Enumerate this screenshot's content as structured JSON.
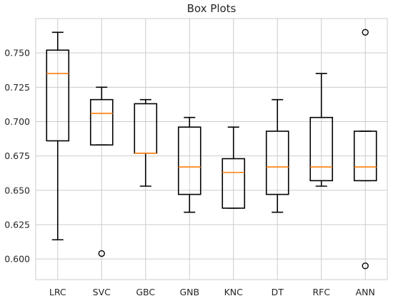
{
  "chart_data": {
    "type": "box",
    "title": "Box Plots",
    "xlabel": "",
    "ylabel": "",
    "ylim": [
      0.585,
      0.775
    ],
    "yticks": [
      0.6,
      0.625,
      0.65,
      0.675,
      0.7,
      0.725,
      0.75
    ],
    "ytick_labels": [
      "0.600",
      "0.625",
      "0.650",
      "0.675",
      "0.700",
      "0.725",
      "0.750"
    ],
    "grid": true,
    "categories": [
      "LRC",
      "SVC",
      "GBC",
      "GNB",
      "KNC",
      "DT",
      "RFC",
      "ANN"
    ],
    "boxes": [
      {
        "label": "LRC",
        "whislo": 0.614,
        "q1": 0.686,
        "med": 0.735,
        "q3": 0.752,
        "whishi": 0.765,
        "fliers": []
      },
      {
        "label": "SVC",
        "whislo": 0.683,
        "q1": 0.683,
        "med": 0.706,
        "q3": 0.716,
        "whishi": 0.725,
        "fliers": [
          0.604
        ]
      },
      {
        "label": "GBC",
        "whislo": 0.653,
        "q1": 0.677,
        "med": 0.677,
        "q3": 0.713,
        "whishi": 0.716,
        "fliers": []
      },
      {
        "label": "GNB",
        "whislo": 0.634,
        "q1": 0.647,
        "med": 0.667,
        "q3": 0.696,
        "whishi": 0.703,
        "fliers": []
      },
      {
        "label": "KNC",
        "whislo": 0.637,
        "q1": 0.637,
        "med": 0.663,
        "q3": 0.673,
        "whishi": 0.696,
        "fliers": []
      },
      {
        "label": "DT",
        "whislo": 0.634,
        "q1": 0.647,
        "med": 0.667,
        "q3": 0.693,
        "whishi": 0.716,
        "fliers": []
      },
      {
        "label": "RFC",
        "whislo": 0.653,
        "q1": 0.657,
        "med": 0.667,
        "q3": 0.703,
        "whishi": 0.735,
        "fliers": []
      },
      {
        "label": "ANN",
        "whislo": 0.657,
        "q1": 0.657,
        "med": 0.667,
        "q3": 0.693,
        "whishi": 0.693,
        "fliers": [
          0.765,
          0.595
        ]
      }
    ],
    "colors": {
      "box": "#000000",
      "median": "#ff7f0e",
      "grid": "#cccccc",
      "spine": "#cccccc",
      "text": "#262626"
    }
  }
}
